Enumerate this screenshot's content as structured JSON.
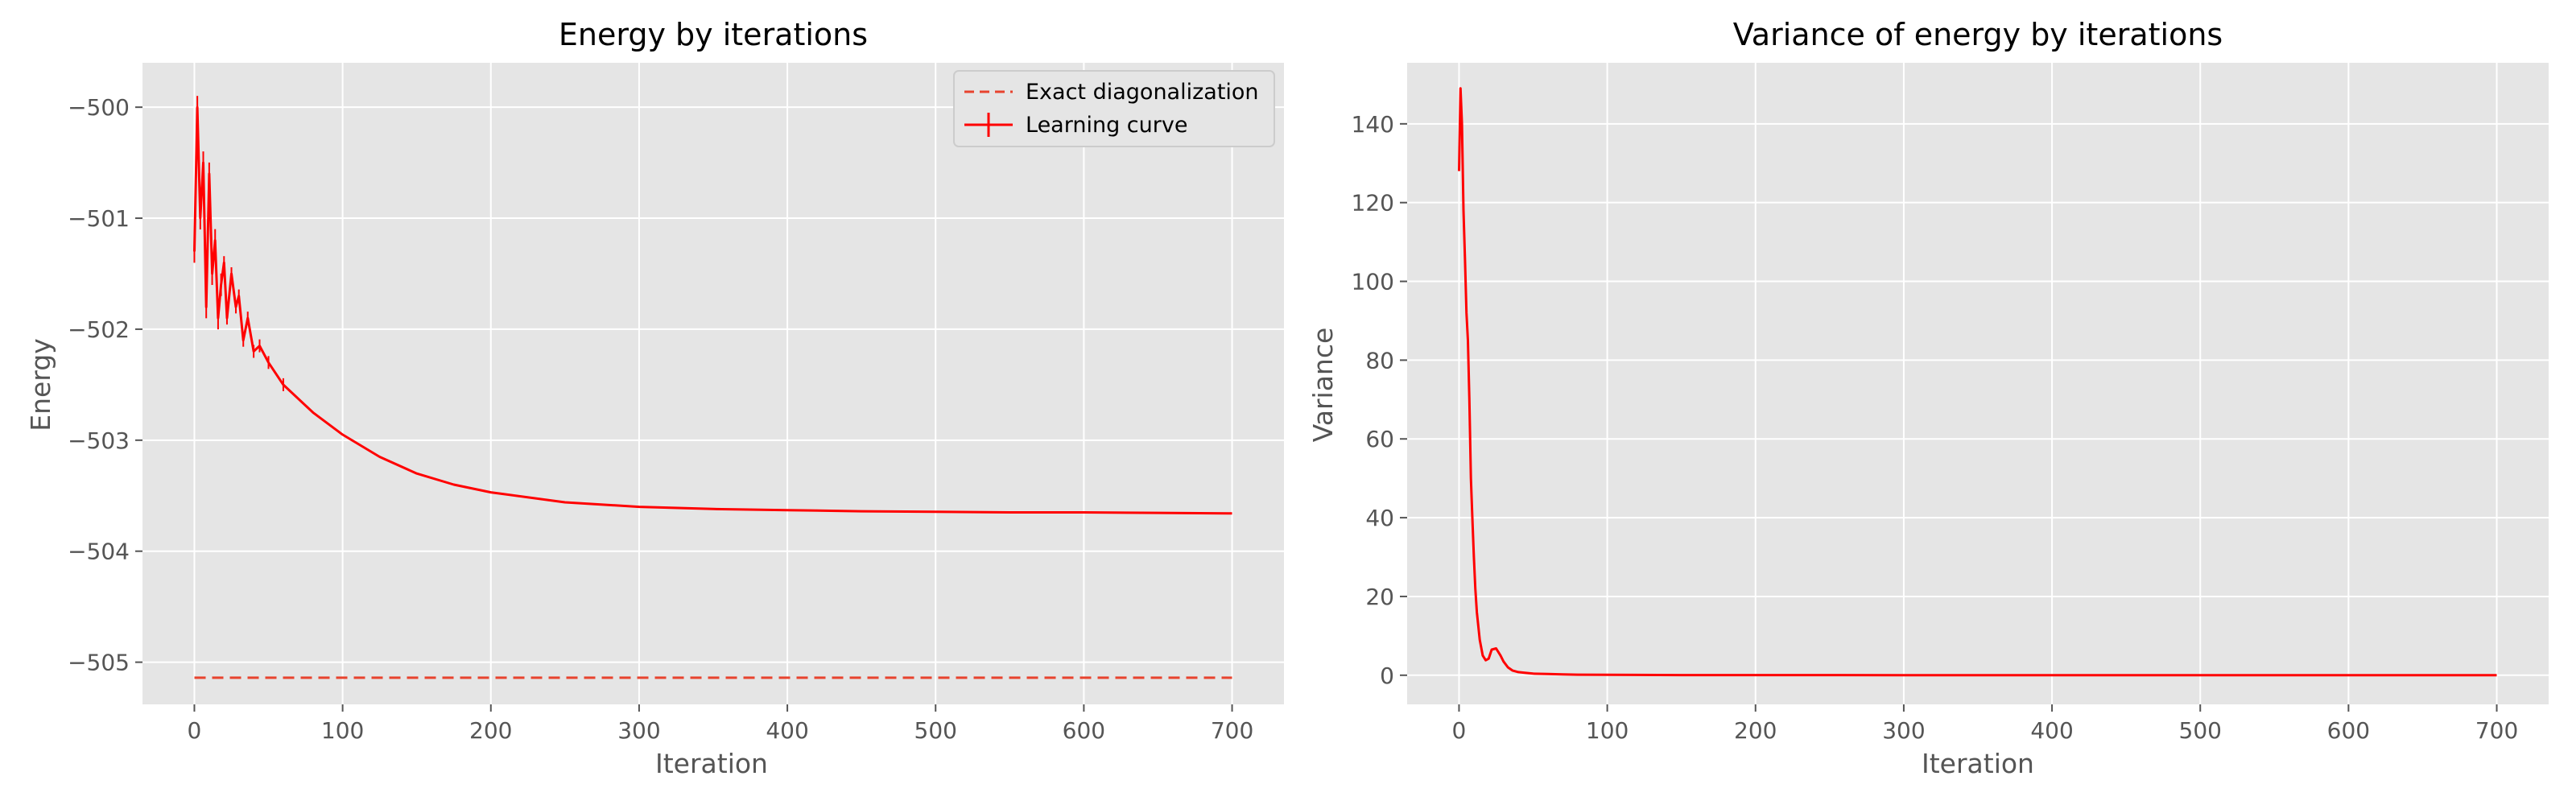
{
  "chart_data": [
    {
      "type": "line",
      "title": "Energy by iterations",
      "xlabel": "Iteration",
      "ylabel": "Energy",
      "xlim": [
        -35,
        735
      ],
      "ylim": [
        -505.38,
        -499.6
      ],
      "x_ticks": [
        0,
        100,
        200,
        300,
        400,
        500,
        600,
        700
      ],
      "y_ticks": [
        -505,
        -504,
        -503,
        -502,
        -501,
        -500
      ],
      "y_tick_labels": [
        "−505",
        "−504",
        "−503",
        "−502",
        "−501",
        "−500"
      ],
      "grid": true,
      "legend": {
        "placement": "top-right",
        "entries": [
          "Exact diagonalization",
          "Learning curve"
        ]
      },
      "series": [
        {
          "name": "Exact diagonalization",
          "style": "dashed",
          "color": "#e8432e",
          "x": [
            0,
            700
          ],
          "y": [
            -505.14,
            -505.14
          ]
        },
        {
          "name": "Learning curve",
          "style": "solid-errorbar",
          "color": "#ff0000",
          "x": [
            0,
            2,
            4,
            6,
            8,
            10,
            12,
            14,
            16,
            18,
            20,
            22,
            25,
            28,
            30,
            33,
            36,
            40,
            44,
            50,
            60,
            80,
            100,
            125,
            150,
            175,
            200,
            250,
            300,
            350,
            400,
            450,
            500,
            550,
            600,
            650,
            700
          ],
          "y": [
            -501.3,
            -500.0,
            -501.0,
            -500.5,
            -501.8,
            -500.6,
            -501.5,
            -501.2,
            -501.9,
            -501.6,
            -501.4,
            -501.9,
            -501.5,
            -501.8,
            -501.7,
            -502.1,
            -501.9,
            -502.2,
            -502.15,
            -502.3,
            -502.5,
            -502.75,
            -502.95,
            -503.15,
            -503.3,
            -503.4,
            -503.47,
            -503.56,
            -503.6,
            -503.62,
            -503.63,
            -503.64,
            -503.645,
            -503.65,
            -503.65,
            -503.655,
            -503.66
          ]
        }
      ]
    },
    {
      "type": "line",
      "title": "Variance of energy by iterations",
      "xlabel": "Iteration",
      "ylabel": "Variance",
      "xlim": [
        -35,
        735
      ],
      "ylim": [
        -7.4,
        155.5
      ],
      "x_ticks": [
        0,
        100,
        200,
        300,
        400,
        500,
        600,
        700
      ],
      "y_ticks": [
        0,
        20,
        40,
        60,
        80,
        100,
        120,
        140
      ],
      "y_tick_labels": [
        "0",
        "20",
        "40",
        "60",
        "80",
        "100",
        "120",
        "140"
      ],
      "grid": true,
      "series": [
        {
          "name": "Variance",
          "style": "solid",
          "color": "#ff0000",
          "x": [
            0,
            1,
            2,
            3,
            4,
            5,
            6,
            7,
            8,
            9,
            10,
            11,
            12,
            14,
            16,
            18,
            20,
            22,
            25,
            28,
            30,
            33,
            36,
            40,
            45,
            50,
            60,
            70,
            80,
            100,
            150,
            200,
            300,
            400,
            500,
            600,
            700
          ],
          "y": [
            128,
            149,
            140,
            118,
            106,
            92,
            85,
            70,
            50,
            40,
            30,
            22,
            16,
            9,
            5,
            3.8,
            4.2,
            6.5,
            6.8,
            5,
            3.5,
            2,
            1.2,
            0.8,
            0.6,
            0.4,
            0.3,
            0.2,
            0.15,
            0.1,
            0.05,
            0.03,
            0.02,
            0.01,
            0.01,
            0.01,
            0.01
          ]
        }
      ]
    }
  ]
}
